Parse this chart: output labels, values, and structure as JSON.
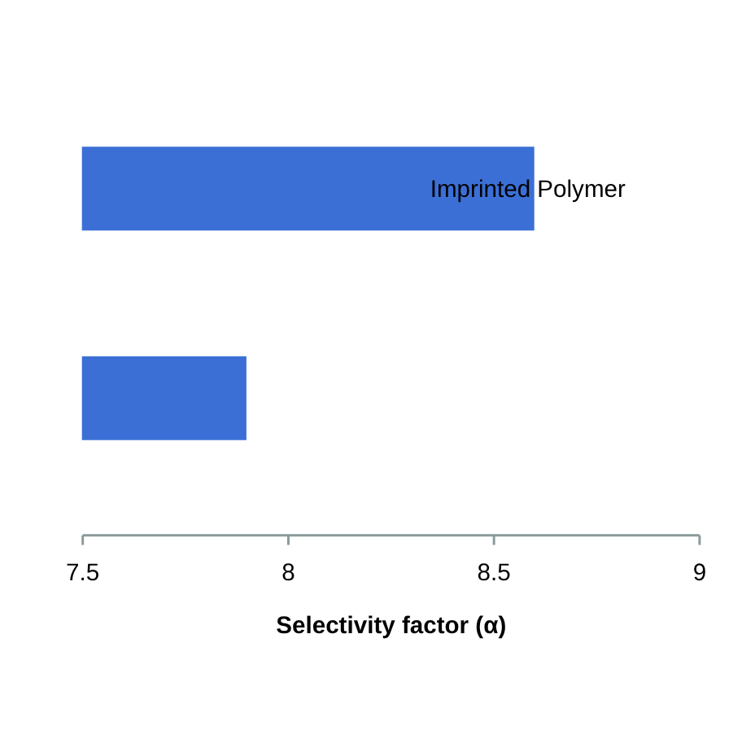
{
  "chart_data": {
    "type": "bar",
    "orientation": "horizontal",
    "categories": [
      null,
      null
    ],
    "values": [
      8.6,
      7.9
    ],
    "color": "#3b6fd6",
    "xlabel": "Selectivity factor (α)",
    "xlim": [
      7.5,
      9
    ],
    "xticks": [
      7.5,
      8,
      8.5,
      9
    ],
    "tick_labels": "x",
    "grid": false,
    "annotations": [
      {
        "text": "Imprinted Polymer",
        "x": 8.6
      }
    ]
  }
}
